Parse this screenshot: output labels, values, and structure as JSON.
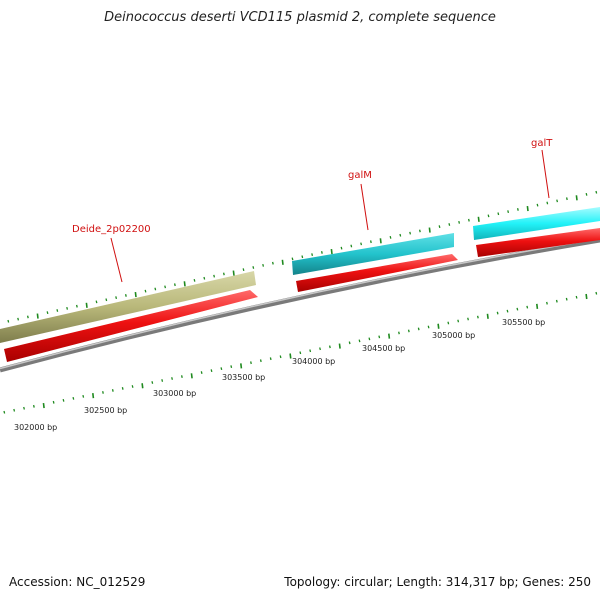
{
  "title": "Deinococcus deserti VCD115 plasmid 2, complete sequence",
  "footer": {
    "accession": "Accession: NC_012529",
    "summary": "Topology: circular; Length: 314,317 bp; Genes: 250"
  },
  "colors": {
    "backbone": "#8a8a8a",
    "cds": "#ee1111",
    "gene_olive": "#b9b87a",
    "gene_teal": "#23c3cc",
    "gene_cyan": "#22f2f8",
    "tick": "#1f8a1f",
    "label": "#d01010"
  },
  "ticks": {
    "bp_labels": [
      "302000 bp",
      "302500 bp",
      "303000 bp",
      "303500 bp",
      "304000 bp",
      "304500 bp",
      "305000 bp",
      "305500 bp"
    ]
  },
  "features": [
    {
      "label": "Deide_2p02200",
      "color": "olive",
      "direction": "forward"
    },
    {
      "label": "galM",
      "color": "teal",
      "direction": "forward"
    },
    {
      "label": "galT",
      "color": "cyan",
      "direction": "forward"
    }
  ]
}
